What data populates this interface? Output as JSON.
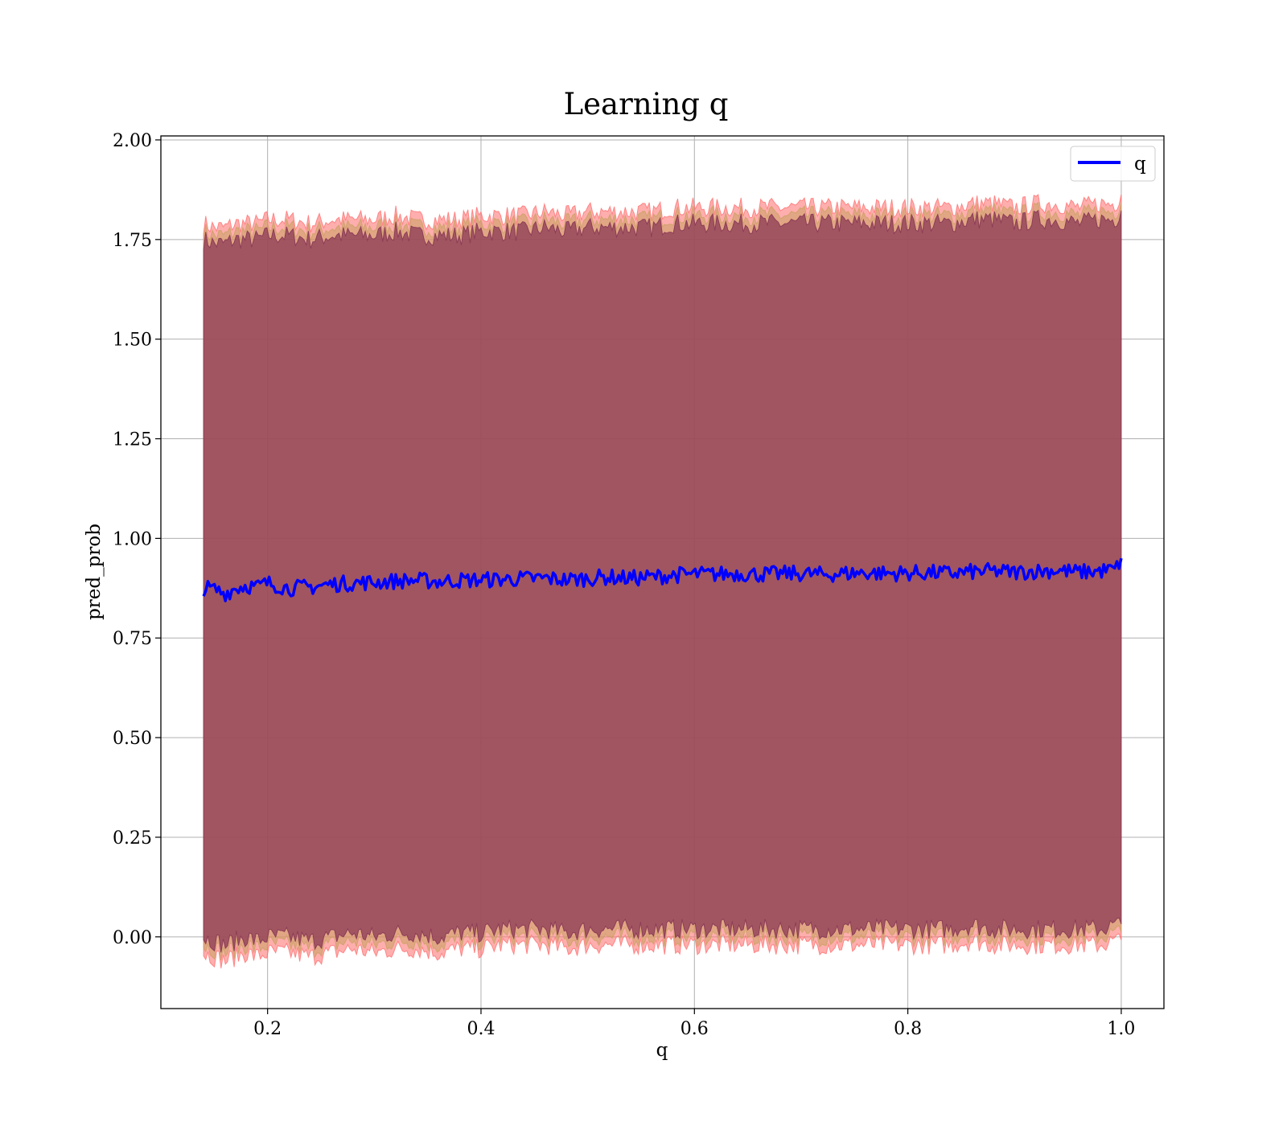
{
  "chart_data": {
    "type": "line",
    "title": "Learning q",
    "xlabel": "q",
    "ylabel": "pred_prob",
    "xlim": [
      0.1,
      1.04
    ],
    "ylim": [
      -0.18,
      2.01
    ],
    "xticks": [
      "0.2",
      "0.4",
      "0.6",
      "0.8",
      "1.0"
    ],
    "yticks": [
      "0.00",
      "0.25",
      "0.50",
      "0.75",
      "1.00",
      "1.25",
      "1.50",
      "1.75",
      "2.00"
    ],
    "grid": true,
    "legend": {
      "position": "top-right",
      "entries": [
        "q"
      ]
    },
    "colors": {
      "line": "#0000ff",
      "band_outer": "#ff6b6b",
      "band_middle": "#c8a060",
      "band_inner": "#8b3a55",
      "grid": "#b0b0b0"
    },
    "series": [
      {
        "name": "q",
        "x": [
          0.14,
          0.15,
          0.16,
          0.17,
          0.18,
          0.19,
          0.2,
          0.22,
          0.24,
          0.26,
          0.28,
          0.3,
          0.32,
          0.34,
          0.36,
          0.38,
          0.4,
          0.42,
          0.44,
          0.46,
          0.48,
          0.5,
          0.52,
          0.54,
          0.56,
          0.58,
          0.6,
          0.62,
          0.64,
          0.66,
          0.68,
          0.7,
          0.72,
          0.74,
          0.76,
          0.78,
          0.8,
          0.82,
          0.84,
          0.86,
          0.88,
          0.9,
          0.92,
          0.94,
          0.96,
          0.98,
          0.995,
          1.0
        ],
        "y": [
          0.875,
          0.872,
          0.862,
          0.875,
          0.882,
          0.878,
          0.888,
          0.875,
          0.878,
          0.885,
          0.888,
          0.89,
          0.893,
          0.895,
          0.892,
          0.895,
          0.896,
          0.897,
          0.899,
          0.9,
          0.896,
          0.9,
          0.903,
          0.9,
          0.903,
          0.908,
          0.91,
          0.91,
          0.912,
          0.91,
          0.911,
          0.912,
          0.909,
          0.912,
          0.914,
          0.912,
          0.913,
          0.914,
          0.912,
          0.916,
          0.918,
          0.915,
          0.918,
          0.92,
          0.915,
          0.918,
          0.922,
          0.95
        ]
      }
    ],
    "bands": [
      {
        "label": "",
        "upper": [
          1.79,
          1.78,
          1.78,
          1.79,
          1.79,
          1.79,
          1.8,
          1.8,
          1.79,
          1.8,
          1.8,
          1.8,
          1.81,
          1.8,
          1.8,
          1.8,
          1.81,
          1.81,
          1.81,
          1.82,
          1.81,
          1.82,
          1.82,
          1.82,
          1.82,
          1.83,
          1.83,
          1.83,
          1.83,
          1.83,
          1.83,
          1.83,
          1.83,
          1.83,
          1.83,
          1.83,
          1.83,
          1.83,
          1.83,
          1.84,
          1.84,
          1.83,
          1.84,
          1.84,
          1.83,
          1.84,
          1.84,
          1.87
        ],
        "lower": [
          -0.04,
          -0.05,
          -0.06,
          -0.05,
          -0.04,
          -0.05,
          -0.04,
          -0.04,
          -0.05,
          -0.04,
          -0.03,
          -0.04,
          -0.03,
          -0.03,
          -0.04,
          -0.03,
          -0.03,
          -0.02,
          -0.02,
          -0.02,
          -0.03,
          -0.02,
          -0.02,
          -0.02,
          -0.02,
          -0.02,
          -0.02,
          -0.02,
          -0.02,
          -0.02,
          -0.02,
          -0.02,
          -0.02,
          -0.02,
          -0.02,
          -0.02,
          -0.02,
          -0.02,
          -0.02,
          -0.01,
          -0.02,
          -0.02,
          -0.02,
          -0.02,
          -0.02,
          -0.02,
          -0.01,
          -0.01
        ]
      }
    ]
  }
}
